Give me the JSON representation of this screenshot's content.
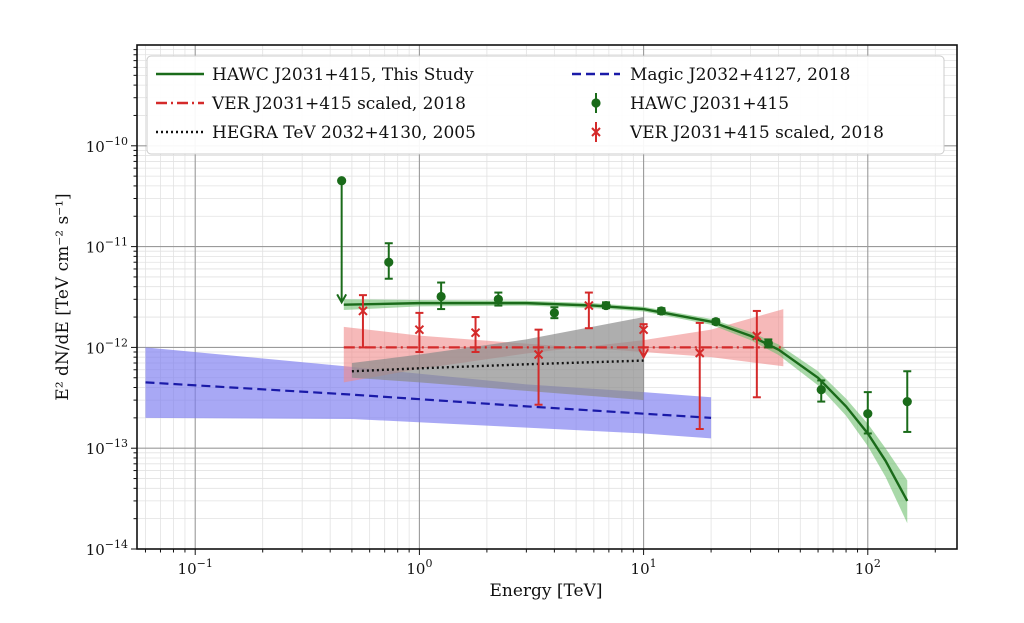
{
  "chart_data": {
    "type": "line",
    "title": "",
    "xlabel": "Energy [TeV]",
    "ylabel": "E² dN/dE [TeV cm⁻² s⁻¹]",
    "xscale": "log",
    "yscale": "log",
    "xlim": [
      0.055,
      250
    ],
    "ylim": [
      1e-14,
      1e-09
    ],
    "grid": true,
    "legend_position": "top",
    "x_tick_labels": [
      {
        "value": 0.1,
        "base": "10",
        "exp": "−1"
      },
      {
        "value": 1,
        "base": "10",
        "exp": "0"
      },
      {
        "value": 10,
        "base": "10",
        "exp": "1"
      },
      {
        "value": 100,
        "base": "10",
        "exp": "2"
      }
    ],
    "y_tick_labels": [
      {
        "value": 1e-14,
        "base": "10",
        "exp": "−14"
      },
      {
        "value": 1e-13,
        "base": "10",
        "exp": "−13"
      },
      {
        "value": 1e-12,
        "base": "10",
        "exp": "−12"
      },
      {
        "value": 1e-11,
        "base": "10",
        "exp": "−11"
      },
      {
        "value": 1e-10,
        "base": "10",
        "exp": "−10"
      }
    ],
    "colors": {
      "hawc": "#1a6b1a",
      "hawc_band": "#6fbf6f",
      "veritas": "#d42a2a",
      "veritas_band": "#f08a8a",
      "hegra": "#111111",
      "hegra_band": "#8c8c8c",
      "magic": "#1a1aa8",
      "magic_band": "#7a7af0"
    },
    "legend": [
      {
        "label": "HAWC J2031+415, This Study",
        "style": "solid",
        "color": "#1a6b1a",
        "marker": "none"
      },
      {
        "label": "Magic J2032+4127, 2018",
        "style": "dashed",
        "color": "#1a1aa8",
        "marker": "none"
      },
      {
        "label": "VER J2031+415 scaled, 2018",
        "style": "dashdot",
        "color": "#d42a2a",
        "marker": "none"
      },
      {
        "label": "HAWC J2031+415",
        "style": "none",
        "color": "#1a6b1a",
        "marker": "circle"
      },
      {
        "label": "HEGRA TeV 2032+4130, 2005",
        "style": "dotted",
        "color": "#111111",
        "marker": "none"
      },
      {
        "label": "VER J2031+415 scaled, 2018",
        "style": "none",
        "color": "#d42a2a",
        "marker": "x"
      }
    ],
    "series": [
      {
        "name": "HAWC J2031+415, This Study",
        "kind": "model",
        "x": [
          0.46,
          1.0,
          3.0,
          6.0,
          10.0,
          20.0,
          30.0,
          40.0,
          60.0,
          80.0,
          100.0,
          120.0,
          150.0
        ],
        "y": [
          2.65e-12,
          2.75e-12,
          2.75e-12,
          2.6e-12,
          2.4e-12,
          1.8e-12,
          1.3e-12,
          9.5e-13,
          5e-13,
          2.6e-13,
          1.4e-13,
          7.5e-14,
          3e-14
        ],
        "band_low": [
          2.35e-12,
          2.55e-12,
          2.6e-12,
          2.45e-12,
          2.27e-12,
          1.68e-12,
          1.18e-12,
          8.4e-13,
          4.2e-13,
          2.1e-13,
          1.05e-13,
          5.2e-14,
          1.8e-14
        ],
        "band_high": [
          3e-12,
          2.95e-12,
          2.9e-12,
          2.75e-12,
          2.53e-12,
          1.92e-12,
          1.42e-12,
          1.07e-12,
          5.8e-13,
          3.1e-13,
          1.75e-13,
          1e-13,
          4.8e-14
        ]
      },
      {
        "name": "VER J2031+415 scaled, 2018",
        "kind": "model",
        "x": [
          0.46,
          1.0,
          3.0,
          10.0,
          20.0,
          42.0
        ],
        "y": [
          1e-12,
          1e-12,
          1e-12,
          1e-12,
          1e-12,
          1e-12
        ],
        "band_low": [
          1.6e-12,
          1.31e-12,
          1.09e-12,
          9e-13,
          8e-13,
          6.5e-13
        ],
        "band_high": [
          4.5e-13,
          6.1e-13,
          8.7e-13,
          1.18e-12,
          1.5e-12,
          2.4e-12
        ]
      },
      {
        "name": "HEGRA TeV 2032+4130, 2005",
        "kind": "model",
        "x": [
          0.5,
          1.0,
          3.0,
          10.0
        ],
        "y": [
          5.8e-13,
          6.2e-13,
          6.8e-13,
          7.4e-13
        ],
        "band_low": [
          5e-13,
          4.5e-13,
          3.7e-13,
          3e-13
        ],
        "band_high": [
          7e-13,
          8.5e-13,
          1.2e-12,
          2e-12
        ]
      },
      {
        "name": "Magic J2032+4127, 2018",
        "kind": "model",
        "x": [
          0.06,
          0.5,
          3.0,
          10.0,
          20.0
        ],
        "y": [
          4.5e-13,
          3.4e-13,
          2.6e-13,
          2.2e-13,
          2e-13
        ],
        "band_low": [
          2e-13,
          1.95e-13,
          1.6e-13,
          1.4e-13,
          1.25e-13
        ],
        "band_high": [
          1e-12,
          6.4e-13,
          4.3e-13,
          3.6e-13,
          3.2e-13
        ]
      },
      {
        "name": "HAWC J2031+415",
        "kind": "points",
        "x": [
          0.45,
          0.73,
          1.25,
          2.25,
          4.0,
          6.8,
          12.0,
          21.0,
          36.0,
          62.0,
          100.0,
          150.0
        ],
        "y": [
          4.5e-11,
          7e-12,
          3.2e-12,
          3e-12,
          2.2e-12,
          2.6e-12,
          2.3e-12,
          1.8e-12,
          1.1e-12,
          3.8e-13,
          2.2e-13,
          2.9e-13
        ],
        "yerr_low": [
          2.8e-12,
          4.8e-12,
          2.4e-12,
          2.6e-12,
          1.95e-12,
          2.45e-12,
          2.15e-12,
          1.7e-12,
          1e-12,
          2.9e-13,
          1.4e-13,
          1.45e-13
        ],
        "yerr_high": [
          4.5e-11,
          1.08e-11,
          4.4e-12,
          3.5e-12,
          2.5e-12,
          2.8e-12,
          2.45e-12,
          1.9e-12,
          1.2e-12,
          4.7e-13,
          3.6e-13,
          5.8e-13
        ],
        "upper_limit": [
          true,
          false,
          false,
          false,
          false,
          false,
          false,
          false,
          false,
          false,
          false,
          false
        ]
      },
      {
        "name": "VER J2031+415 scaled, 2018",
        "kind": "points",
        "x": [
          0.56,
          1.0,
          1.78,
          3.4,
          5.7,
          10.0,
          17.8,
          32.0
        ],
        "y": [
          2.3e-12,
          1.5e-12,
          1.4e-12,
          8.5e-13,
          2.6e-12,
          1.5e-12,
          8.8e-13,
          1.3e-12
        ],
        "yerr_low": [
          1e-12,
          9e-13,
          9e-13,
          2.7e-13,
          1.55e-12,
          8e-13,
          1.55e-13,
          3.2e-13
        ],
        "yerr_high": [
          3.3e-12,
          2.2e-12,
          2e-12,
          1.5e-12,
          3.5e-12,
          1.7e-12,
          1.75e-12,
          2.3e-12
        ],
        "upper_limit": [
          false,
          false,
          false,
          false,
          false,
          true,
          false,
          false
        ]
      }
    ]
  }
}
